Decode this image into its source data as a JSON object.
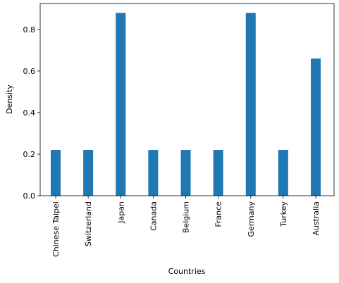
{
  "chart_data": {
    "type": "bar",
    "xlabel": "Countries",
    "ylabel": "Density",
    "categories": [
      "Chinese Taipei",
      "Switzerland",
      "Japan",
      "Canada",
      "Belgium",
      "France",
      "Germany",
      "Turkey",
      "Australia"
    ],
    "values": [
      0.22,
      0.22,
      0.88,
      0.22,
      0.22,
      0.22,
      0.88,
      0.22,
      0.66
    ],
    "color": "#1f77b4",
    "ylim": [
      0,
      0.925
    ],
    "yticks": [
      {
        "value": 0,
        "label": "0.0"
      },
      0.2,
      0.4,
      0.6,
      0.8
    ],
    "grid": false
  }
}
